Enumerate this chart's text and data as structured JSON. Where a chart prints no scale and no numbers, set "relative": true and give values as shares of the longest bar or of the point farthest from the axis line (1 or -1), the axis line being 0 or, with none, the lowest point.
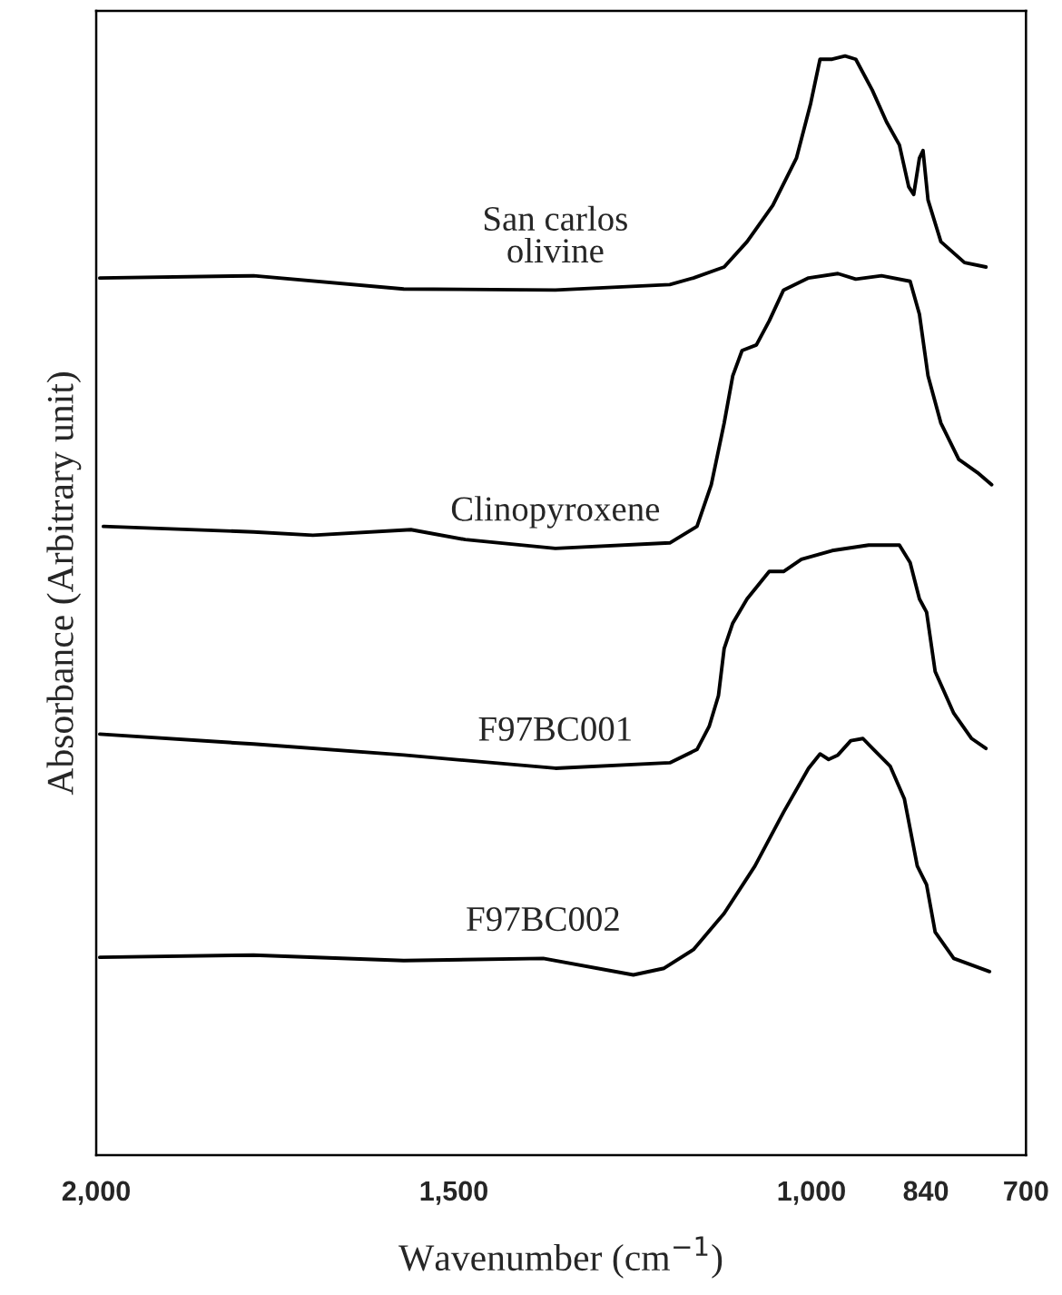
{
  "chart_data": {
    "type": "line",
    "relative": true,
    "xlabel": "Wavenumber (cm$^{−1}$)",
    "ylabel": "Absorbance (Arbitrary unit)",
    "xlim": [
      2000,
      700
    ],
    "xticks": [
      {
        "value": 2000,
        "label": "2,000"
      },
      {
        "value": 1500,
        "label": "1,500"
      },
      {
        "value": 1000,
        "label": "1,000"
      },
      840,
      700
    ],
    "grid": false,
    "legend": false,
    "marker": "none",
    "line_style": "solid",
    "series": [
      {
        "name": "San carlos\nolivine",
        "color": "#000000",
        "x": [
          1995,
          1780,
          1570,
          1358,
          1198,
          1165,
          1122,
          1090,
          1054,
          1021,
          1001,
          988,
          971,
          953,
          938,
          915,
          895,
          877,
          864,
          857,
          849,
          844,
          837,
          819,
          786,
          756
        ],
        "values": [
          0.798,
          0.8,
          0.788,
          0.787,
          0.792,
          0.798,
          0.808,
          0.831,
          0.864,
          0.907,
          0.957,
          0.997,
          0.997,
          1,
          0.997,
          0.969,
          0.94,
          0.919,
          0.881,
          0.874,
          0.907,
          0.914,
          0.869,
          0.831,
          0.812,
          0.808
        ]
      },
      {
        "name": "Clinopyroxene",
        "color": "#000000",
        "x": [
          1990,
          1780,
          1697,
          1560,
          1484,
          1358,
          1198,
          1160,
          1140,
          1122,
          1110,
          1097,
          1077,
          1059,
          1039,
          1004,
          963,
          938,
          902,
          862,
          849,
          837,
          819,
          794,
          768,
          748
        ],
        "values": [
          0.572,
          0.567,
          0.564,
          0.569,
          0.56,
          0.552,
          0.557,
          0.572,
          0.61,
          0.666,
          0.709,
          0.732,
          0.737,
          0.759,
          0.787,
          0.798,
          0.802,
          0.797,
          0.8,
          0.795,
          0.765,
          0.709,
          0.666,
          0.633,
          0.621,
          0.61
        ]
      },
      {
        "name": "F97BC001",
        "color": "#000000",
        "x": [
          1995,
          1780,
          1570,
          1358,
          1198,
          1160,
          1143,
          1130,
          1122,
          1110,
          1090,
          1059,
          1039,
          1014,
          971,
          920,
          877,
          862,
          849,
          839,
          827,
          801,
          776,
          756
        ],
        "values": [
          0.383,
          0.374,
          0.364,
          0.352,
          0.357,
          0.369,
          0.39,
          0.418,
          0.461,
          0.484,
          0.506,
          0.531,
          0.531,
          0.542,
          0.55,
          0.555,
          0.555,
          0.539,
          0.506,
          0.494,
          0.44,
          0.402,
          0.379,
          0.37
        ]
      },
      {
        "name": "F97BC002",
        "color": "#000000",
        "x": [
          1995,
          1780,
          1570,
          1375,
          1249,
          1206,
          1165,
          1122,
          1079,
          1039,
          1004,
          988,
          976,
          963,
          945,
          928,
          913,
          890,
          870,
          852,
          839,
          827,
          801,
          751
        ],
        "values": [
          0.18,
          0.182,
          0.177,
          0.179,
          0.164,
          0.17,
          0.187,
          0.22,
          0.263,
          0.312,
          0.352,
          0.365,
          0.36,
          0.364,
          0.377,
          0.379,
          0.369,
          0.354,
          0.324,
          0.263,
          0.246,
          0.203,
          0.179,
          0.167
        ]
      }
    ]
  }
}
